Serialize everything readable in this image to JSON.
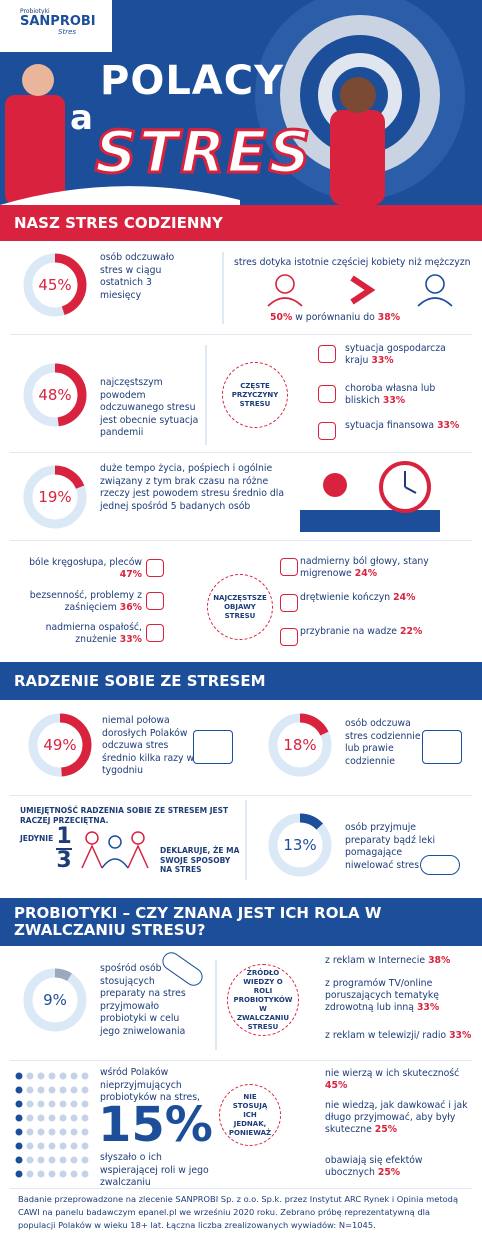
{
  "header": {
    "brand_small": "Probiotyki",
    "brand": "SANPROBI",
    "brand_sub": "Stres",
    "title_1": "POLACY",
    "title_2": "a",
    "title_3": "STRES"
  },
  "sections": [
    "NASZ STRES CODZIENNY",
    "RADZENIE SOBIE ZE STRESEM",
    "PROBIOTYKI – CZY ZNANA JEST ICH ROLA W ZWALCZANIU STRESU?"
  ],
  "stats": [
    {
      "value": 45,
      "label": "45%",
      "text": "osób odczuwało stres w ciągu ostatnich 3 miesięcy",
      "color": "#d9233e"
    },
    {
      "value": 48,
      "label": "48%",
      "text": "najczęstszym powodem odczuwanego stresu jest obecnie sytuacja pandemii",
      "color": "#d9233e"
    },
    {
      "value": 19,
      "label": "19%",
      "text": "duże tempo życia, pośpiech i ogólnie związany z tym brak czasu na różne rzeczy jest powodem stresu średnio dla jednej spośród 5 badanych osób",
      "color": "#d9233e"
    },
    {
      "value": 49,
      "label": "49%",
      "text": "niemal połowa dorosłych Polaków odczuwa stres średnio kilka razy w tygodniu",
      "color": "#d9233e"
    },
    {
      "value": 18,
      "label": "18%",
      "text": "osób odczuwa stres codziennie lub prawie codziennie",
      "color": "#d9233e"
    },
    {
      "value": 13,
      "label": "13%",
      "text": "osób przyjmuje preparaty bądź leki pomagające niwelować stres",
      "color": "#1c4e9a"
    },
    {
      "value": 9,
      "label": "9%",
      "text": "spośród osób stosujących preparaty na stres przyjmowało probiotyki w celu jego zniwelowania",
      "color": "#9aa9bd"
    }
  ],
  "gender": {
    "text": "stres dotyka istotnie częściej kobiety niż mężczyzn",
    "women": "50%",
    "middle": "w porównaniu do",
    "men": "38%"
  },
  "causes": {
    "title": "CZĘSTE PRZYCZYNY STRESU",
    "items": [
      {
        "text": "sytuacja gospodarcza kraju",
        "pct": "33%"
      },
      {
        "text": "choroba własna lub bliskich",
        "pct": "33%"
      },
      {
        "text": "sytuacja finansowa",
        "pct": "33%"
      }
    ]
  },
  "symptoms": {
    "title": "NAJCZĘSTSZE OBJAWY STRESU",
    "items": [
      {
        "text": "bóle kręgosłupa, pleców",
        "pct": "47%"
      },
      {
        "text": "bezsenność, problemy z zaśnięciem",
        "pct": "36%"
      },
      {
        "text": "nadmierna ospałość, znużenie",
        "pct": "33%"
      },
      {
        "text": "nadmierny ból głowy, stany migrenowe",
        "pct": "24%"
      },
      {
        "text": "drętwienie kończyn",
        "pct": "24%"
      },
      {
        "text": "przybranie na wadze",
        "pct": "22%"
      }
    ]
  },
  "coping": {
    "heading": "UMIEJĘTNOŚĆ RADZENIA SOBIE ZE STRESEM JEST RACZEJ PRZECIĘTNA.",
    "only": "JEDYNIE",
    "numerator": "1",
    "denominator": "3",
    "text": "DEKLARUJE, ŻE MA SWOJE SPOSOBY NA STRES"
  },
  "sources": {
    "title": "ŹRÓDŁO WIEDZY O ROLI PROBIOTYKÓW W ZWALCZANIU STRESU",
    "items": [
      {
        "text": "z reklam w Internecie",
        "pct": "38%"
      },
      {
        "text": "z programów TV/online poruszających tematykę zdrowotną lub inną",
        "pct": "33%"
      },
      {
        "text": "z reklam w telewizji/ radio",
        "pct": "33%"
      }
    ]
  },
  "aware": {
    "before": "wśród Polaków nieprzyjmujących probiotyków na stres,",
    "value": "15%",
    "after": "słyszało o ich wspierającej roli w jego zwalczaniu"
  },
  "reasons": {
    "title": "NIE STOSUJĄ ICH JEDNAK, PONIEWAŻ",
    "items": [
      {
        "text": "nie wierzą w ich skuteczność",
        "pct": "45%"
      },
      {
        "text": "nie wiedzą, jak dawkować i jak długo przyjmować, aby były skuteczne",
        "pct": "25%"
      },
      {
        "text": "obawiają się efektów ubocznych",
        "pct": "25%"
      }
    ]
  },
  "footer": "Badanie przeprowadzone na zlecenie SANPROBI Sp. z o.o. Sp.k. przez Instytut ARC Rynek i Opinia metodą CAWI na panelu badawczym epanel.pl we wrześniu 2020 roku. Zebrano próbę reprezentatywną dla populacji Polaków w wieku 18+ lat. Łączna liczba zrealizowanych wywiadów: N=1045."
}
